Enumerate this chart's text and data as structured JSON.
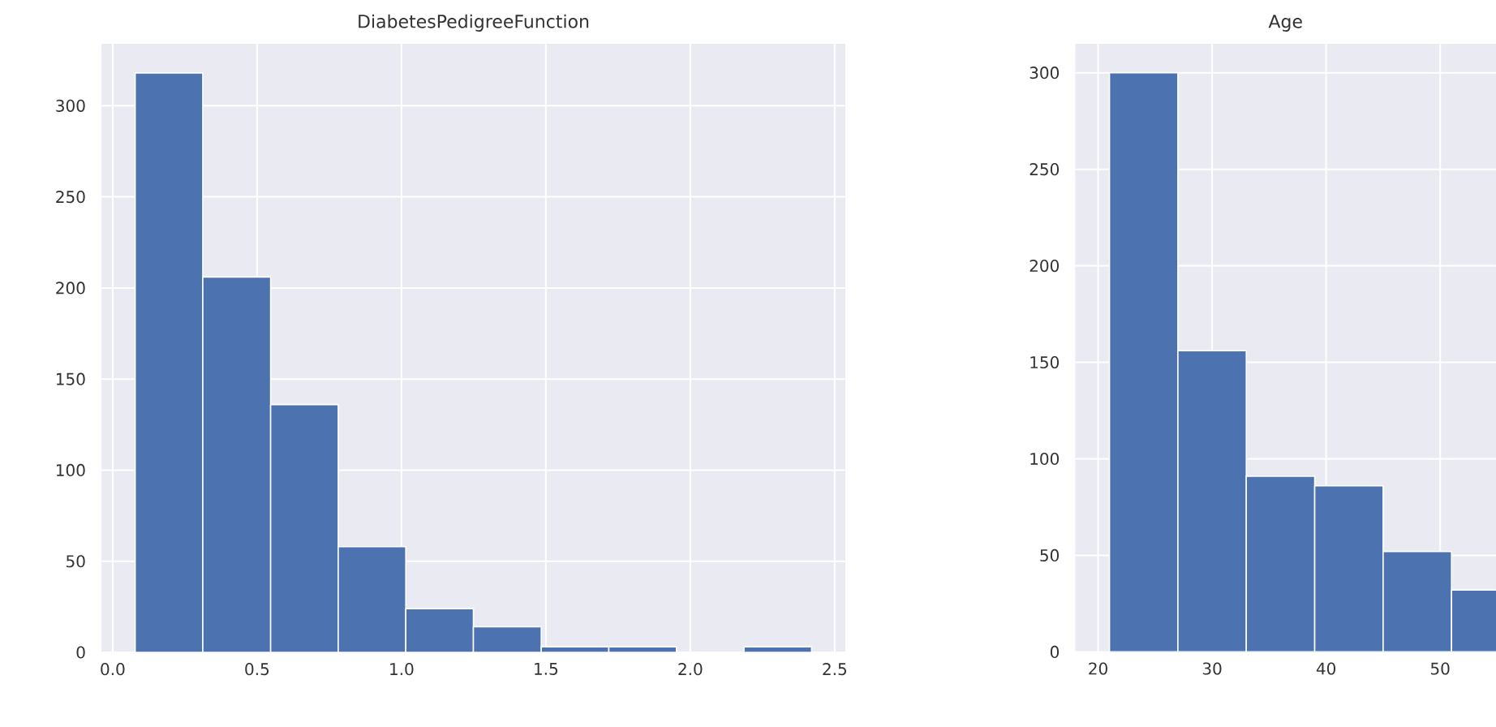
{
  "chart_data": [
    {
      "type": "histogram",
      "title": "DiabetesPedigreeFunction",
      "color": "#4c72b0",
      "grid": true,
      "bins": [
        0.078,
        0.312,
        0.547,
        0.781,
        1.015,
        1.249,
        1.484,
        1.718,
        1.952,
        2.186,
        2.42
      ],
      "values": [
        318,
        206,
        136,
        58,
        24,
        14,
        3,
        3,
        0,
        3
      ],
      "xlim": [
        -0.039,
        2.537
      ],
      "ylim": [
        0,
        334
      ],
      "xticks": [
        {
          "value": 0,
          "label": "0.0"
        },
        {
          "value": 0.5,
          "label": "0.5"
        },
        {
          "value": 1,
          "label": "1.0"
        },
        {
          "value": 1.5,
          "label": "1.5"
        },
        {
          "value": 2,
          "label": "2.0"
        },
        {
          "value": 2.5,
          "label": "2.5"
        }
      ],
      "yticks": [
        0,
        50,
        100,
        150,
        200,
        250,
        300
      ]
    },
    {
      "type": "histogram",
      "title": "Age",
      "color": "#4c72b0",
      "grid": true,
      "bins": [
        21,
        27,
        33,
        39,
        45,
        51,
        57
      ],
      "values": [
        300,
        156,
        91,
        86,
        52,
        32
      ],
      "xlim": [
        18,
        54.9
      ],
      "ylim": [
        0,
        315
      ],
      "xticks": [
        20,
        30,
        40,
        50
      ],
      "yticks": [
        0,
        50,
        100,
        150,
        200,
        250,
        300
      ]
    }
  ]
}
